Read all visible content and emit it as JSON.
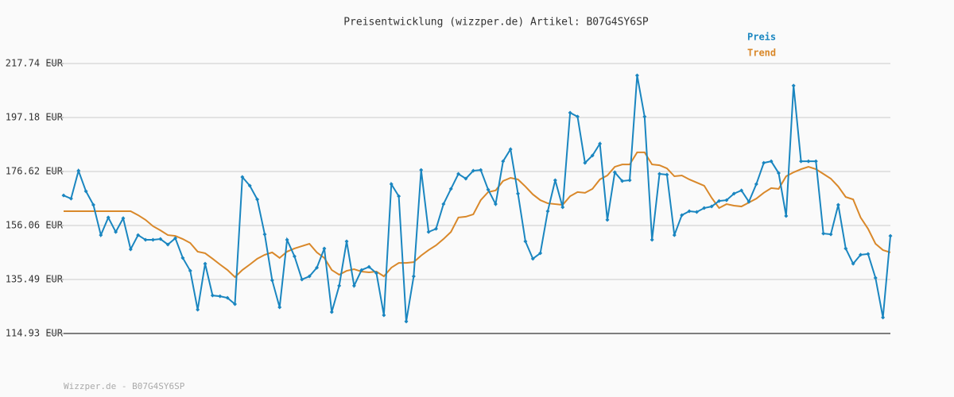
{
  "chart_data": {
    "type": "line",
    "title": "Preisentwicklung (wizzper.de) Artikel: B07G4SY6SP",
    "footer": "Wizzper.de - B07G4SY6SP",
    "legend": "top-right",
    "grid": true,
    "ylim": [
      114.93,
      217.74
    ],
    "yticks": [
      {
        "value": 114.93,
        "label": "114.93 EUR"
      },
      {
        "value": 135.49,
        "label": "135.49 EUR"
      },
      {
        "value": 156.06,
        "label": "156.06 EUR"
      },
      {
        "value": 176.62,
        "label": "176.62 EUR"
      },
      {
        "value": 197.18,
        "label": "197.18 EUR"
      },
      {
        "value": 217.74,
        "label": "217.74 EUR"
      }
    ],
    "categories": [
      null,
      null,
      null,
      null,
      null,
      null,
      null,
      null,
      null,
      null,
      null,
      null,
      null,
      null,
      null,
      null,
      null,
      null,
      null,
      null,
      null,
      null,
      null,
      null,
      null,
      null,
      null,
      null,
      null,
      null,
      null,
      null,
      null,
      null,
      null,
      null,
      null,
      null,
      null,
      null,
      null,
      null,
      null,
      null,
      null,
      null,
      null,
      null,
      null,
      null,
      null,
      null,
      null,
      null,
      null,
      null,
      null,
      null,
      null,
      null,
      null,
      null,
      null,
      null,
      null,
      null,
      null,
      null,
      null,
      null,
      null,
      null,
      null,
      null,
      null,
      null,
      null,
      null,
      null,
      null,
      null,
      null,
      null,
      null,
      null,
      null,
      null,
      null,
      null,
      null,
      null,
      null,
      null,
      null,
      null,
      null,
      null,
      null,
      null,
      null,
      null,
      null,
      null,
      null,
      null,
      null,
      null,
      null,
      null,
      null,
      null,
      null
    ],
    "series": [
      {
        "name": "Preis",
        "color": "#1a86c0",
        "markers": true,
        "values": [
          167.5,
          166.3,
          176.9,
          169.1,
          163.9,
          152.4,
          159.1,
          153.6,
          158.8,
          147.0,
          152.4,
          150.6,
          150.6,
          150.9,
          148.8,
          151.2,
          143.7,
          138.8,
          124.0,
          141.5,
          129.4,
          129.1,
          128.5,
          126.1,
          174.5,
          171.2,
          166.0,
          152.7,
          135.2,
          124.9,
          150.6,
          144.3,
          135.5,
          136.7,
          140.0,
          147.3,
          123.1,
          133.1,
          150.0,
          133.1,
          139.1,
          140.3,
          137.9,
          121.9,
          171.8,
          167.2,
          119.5,
          136.7,
          177.2,
          153.6,
          154.8,
          164.2,
          170.0,
          175.7,
          173.9,
          176.9,
          177.2,
          169.7,
          164.2,
          180.5,
          185.1,
          168.2,
          150.0,
          143.4,
          145.5,
          161.5,
          173.3,
          163.0,
          199.0,
          197.5,
          179.9,
          182.7,
          187.2,
          158.2,
          176.3,
          173.0,
          173.3,
          213.2,
          197.5,
          150.6,
          175.7,
          175.4,
          152.4,
          160.0,
          161.5,
          161.2,
          162.7,
          163.3,
          165.4,
          165.7,
          168.2,
          169.4,
          165.1,
          171.8,
          179.9,
          180.5,
          176.0,
          159.7,
          209.3,
          180.5,
          180.5,
          180.5,
          153.0,
          152.7,
          163.9,
          147.3,
          141.5,
          144.9,
          145.2,
          136.1,
          121.0,
          152.1
        ]
      },
      {
        "name": "Trend",
        "color": "#d9882a",
        "markers": false,
        "values": [
          161.5,
          161.5,
          161.5,
          161.5,
          161.5,
          161.5,
          161.5,
          161.5,
          161.5,
          161.5,
          160.0,
          158.2,
          155.8,
          154.2,
          152.4,
          152.1,
          150.9,
          149.4,
          146.1,
          145.5,
          143.4,
          141.2,
          139.1,
          136.4,
          139.1,
          141.2,
          143.4,
          144.9,
          145.8,
          143.7,
          146.1,
          147.3,
          148.2,
          149.1,
          145.8,
          143.7,
          139.1,
          137.3,
          138.8,
          139.4,
          138.5,
          138.2,
          138.5,
          136.7,
          140.0,
          141.8,
          141.8,
          142.1,
          144.6,
          146.7,
          148.5,
          150.9,
          153.6,
          159.1,
          159.4,
          160.3,
          165.7,
          168.8,
          169.4,
          173.0,
          174.2,
          173.6,
          170.9,
          167.9,
          165.7,
          164.5,
          164.2,
          163.9,
          167.2,
          168.8,
          168.5,
          170.0,
          173.6,
          175.1,
          178.4,
          179.3,
          179.3,
          183.9,
          183.9,
          179.3,
          179.0,
          177.8,
          174.8,
          175.1,
          173.6,
          172.4,
          171.2,
          166.6,
          162.7,
          164.2,
          163.6,
          163.3,
          164.8,
          166.3,
          168.5,
          170.3,
          170.0,
          174.8,
          176.3,
          177.5,
          178.4,
          177.5,
          175.7,
          173.9,
          170.9,
          166.9,
          166.0,
          159.1,
          154.8,
          149.1,
          146.7,
          145.8
        ]
      }
    ]
  }
}
